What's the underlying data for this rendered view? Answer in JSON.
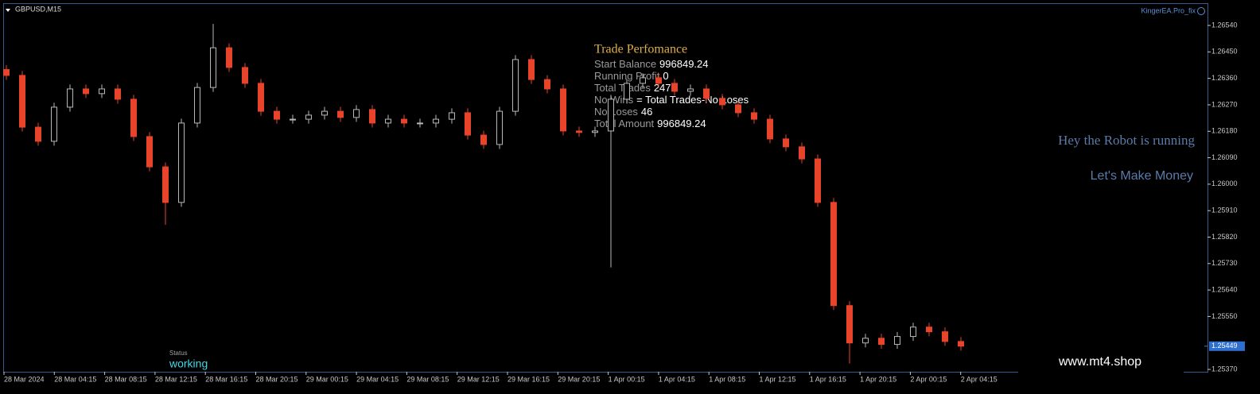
{
  "window": {
    "symbol": "GBPUSD,M15",
    "expert": "KingerEA.Pro_fix"
  },
  "chart_data": {
    "type": "candlestick",
    "open": [
      1.2639,
      1.2637,
      1.26194,
      1.26146,
      1.26262,
      1.26324,
      1.26308,
      1.26324,
      1.26289,
      1.26162,
      1.26059,
      1.25938,
      1.26208,
      1.26329,
      1.26464,
      1.26397,
      1.26343,
      1.26248,
      1.26221,
      1.26221,
      1.26235,
      1.26248,
      1.26227,
      1.26254,
      1.26208,
      1.26221,
      1.26208,
      1.26208,
      1.26221,
      1.26243,
      1.26167,
      1.26135,
      1.26248,
      1.26424,
      1.26356,
      1.26324,
      1.26181,
      1.26176,
      1.26181,
      1.26289,
      1.26343,
      1.26362,
      1.26343,
      1.26316,
      1.26324,
      1.26292,
      1.2627,
      1.26243,
      1.26221,
      1.26154,
      1.26127,
      1.26086,
      1.25938,
      1.25587,
      1.2546,
      1.25476,
      1.25455,
      1.25482,
      1.25514,
      1.25498,
      1.25465
    ],
    "high": [
      1.26405,
      1.26385,
      1.26209,
      1.26277,
      1.26339,
      1.26339,
      1.26339,
      1.26339,
      1.26304,
      1.26177,
      1.26074,
      1.26223,
      1.26344,
      1.26545,
      1.26479,
      1.26412,
      1.26358,
      1.26263,
      1.26236,
      1.2625,
      1.26263,
      1.26263,
      1.26269,
      1.26269,
      1.26236,
      1.26236,
      1.26223,
      1.26236,
      1.26258,
      1.26258,
      1.26182,
      1.26263,
      1.26439,
      1.26439,
      1.26371,
      1.26339,
      1.26196,
      1.26196,
      1.26304,
      1.26358,
      1.26377,
      1.26377,
      1.26358,
      1.26339,
      1.26339,
      1.26307,
      1.26285,
      1.26258,
      1.26236,
      1.26169,
      1.26142,
      1.26101,
      1.25953,
      1.25602,
      1.25491,
      1.25491,
      1.25497,
      1.25529,
      1.25529,
      1.25513,
      1.2548
    ],
    "low": [
      1.26355,
      1.26179,
      1.26131,
      1.26131,
      1.26247,
      1.26293,
      1.26293,
      1.26274,
      1.26147,
      1.26044,
      1.25862,
      1.25923,
      1.26193,
      1.26314,
      1.26382,
      1.26328,
      1.26233,
      1.26206,
      1.26206,
      1.26206,
      1.2622,
      1.26212,
      1.26212,
      1.26193,
      1.26193,
      1.26193,
      1.26193,
      1.26193,
      1.26206,
      1.26152,
      1.2612,
      1.2612,
      1.26233,
      1.26341,
      1.26309,
      1.26166,
      1.26161,
      1.26161,
      1.25717,
      1.26274,
      1.26328,
      1.26328,
      1.26301,
      1.26301,
      1.26277,
      1.26255,
      1.26228,
      1.26206,
      1.26139,
      1.26112,
      1.26071,
      1.25923,
      1.25572,
      1.2539,
      1.25445,
      1.2544,
      1.2544,
      1.25467,
      1.25483,
      1.2545,
      1.25434
    ],
    "close": [
      1.2637,
      1.26194,
      1.26146,
      1.26262,
      1.26324,
      1.26308,
      1.26324,
      1.26289,
      1.26162,
      1.26059,
      1.25938,
      1.26208,
      1.26329,
      1.26464,
      1.26397,
      1.26343,
      1.26248,
      1.26221,
      1.26221,
      1.26235,
      1.26248,
      1.26227,
      1.26254,
      1.26208,
      1.26221,
      1.26208,
      1.26208,
      1.26221,
      1.26243,
      1.26167,
      1.26135,
      1.26248,
      1.26424,
      1.26356,
      1.26324,
      1.26181,
      1.26176,
      1.26181,
      1.26289,
      1.26343,
      1.26362,
      1.26343,
      1.26316,
      1.26324,
      1.26292,
      1.2627,
      1.26243,
      1.26221,
      1.26154,
      1.26127,
      1.26086,
      1.25938,
      1.25587,
      1.2546,
      1.25476,
      1.25455,
      1.25482,
      1.25514,
      1.25498,
      1.25465,
      1.25449
    ],
    "time_labels": [
      "28 Mar 2024",
      "28 Mar 04:15",
      "28 Mar 08:15",
      "28 Mar 12:15",
      "28 Mar 16:15",
      "28 Mar 20:15",
      "29 Mar 00:15",
      "29 Mar 04:15",
      "29 Mar 08:15",
      "29 Mar 12:15",
      "29 Mar 16:15",
      "29 Mar 20:15",
      "1 Apr 00:15",
      "1 Apr 04:15",
      "1 Apr 08:15",
      "1 Apr 12:15",
      "1 Apr 16:15",
      "1 Apr 20:15",
      "2 Apr 00:15",
      "2 Apr 04:15"
    ],
    "ylim": [
      1.25362,
      1.26613
    ],
    "yticks": [
      {
        "value": 1.2654,
        "label": "1.26540"
      },
      {
        "value": 1.2645,
        "label": "1.26450"
      },
      {
        "value": 1.2636,
        "label": "1.26360"
      },
      {
        "value": 1.2627,
        "label": "1.26270"
      },
      {
        "value": 1.2618,
        "label": "1.26180"
      },
      {
        "value": 1.2609,
        "label": "1.26090"
      },
      {
        "value": 1.26,
        "label": "1.26000"
      },
      {
        "value": 1.2591,
        "label": "1.25910"
      },
      {
        "value": 1.2582,
        "label": "1.25820"
      },
      {
        "value": 1.2573,
        "label": "1.25730"
      },
      {
        "value": 1.2564,
        "label": "1.25640"
      },
      {
        "value": 1.2555,
        "label": "1.25550"
      },
      {
        "value": 1.2537,
        "label": "1.25370"
      }
    ],
    "current_price": 1.25449,
    "bull_color": "#b8b8b8",
    "bear_color": "#e8442c",
    "grid": false
  },
  "panel": {
    "title": "Trade Perfomance",
    "rows": [
      [
        "Start Balance",
        996849.24
      ],
      [
        "Running Profit",
        0
      ],
      [
        "Total Trades",
        247
      ],
      [
        "No Wins",
        "= Total Trades-No Loses"
      ],
      [
        "No Loses",
        46
      ],
      [
        "Total Amount",
        996849.24
      ]
    ]
  },
  "messages": [
    "Hey the Robot is running",
    "Let's Make Money"
  ],
  "status": {
    "label": "Status",
    "value": "working"
  },
  "watermark": "www.mt4.shop"
}
